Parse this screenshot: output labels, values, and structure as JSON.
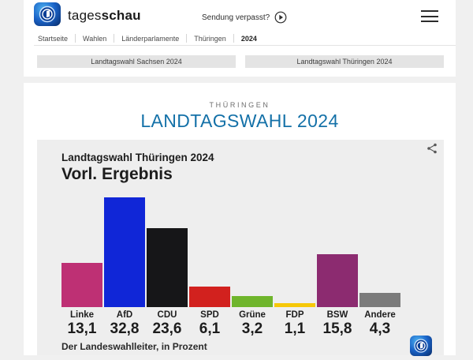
{
  "header": {
    "brand_regular": "tages",
    "brand_bold": "schau",
    "broadcast_link": "Sendung verpasst?",
    "breadcrumb": [
      "Startseite",
      "Wahlen",
      "Länderparlamente",
      "Thüringen",
      "2024"
    ]
  },
  "nav_buttons": {
    "sachsen": "Landtagswahl Sachsen 2024",
    "thueringen": "Landtagswahl Thüringen 2024"
  },
  "main": {
    "kicker": "THÜRINGEN",
    "title": "LANDTAGSWAHL 2024"
  },
  "chart_data": {
    "type": "bar",
    "title": "Landtagswahl Thüringen 2024",
    "subtitle": "Vorl. Ergebnis",
    "source": "Der Landeswahlleiter, in Prozent",
    "unit": "Prozent",
    "categories": [
      "Linke",
      "AfD",
      "CDU",
      "SPD",
      "Grüne",
      "FDP",
      "BSW",
      "Andere"
    ],
    "values": [
      13.1,
      32.8,
      23.6,
      6.1,
      3.2,
      1.1,
      15.8,
      4.3
    ],
    "value_labels": [
      "13,1",
      "32,8",
      "23,6",
      "6,1",
      "3,2",
      "1,1",
      "15,8",
      "4,3"
    ],
    "colors": [
      "#be3074",
      "#1026d7",
      "#161618",
      "#d2211e",
      "#6fb52c",
      "#f6c808",
      "#8c2b70",
      "#7b7b7b"
    ],
    "ylim": [
      0,
      33
    ],
    "grid": false,
    "legend": "none"
  },
  "colors": {
    "accent_blue": "#1471a8",
    "page_bg": "#f0f0f0",
    "card_bg": "#eeeeee"
  }
}
